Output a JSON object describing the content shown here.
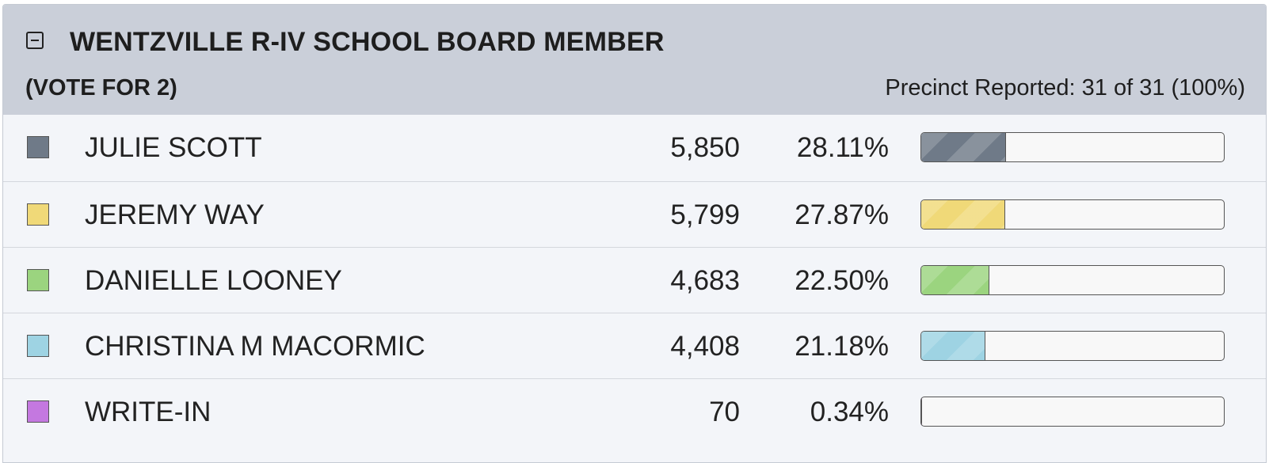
{
  "contest": {
    "title": "WENTZVILLE R-IV SCHOOL BOARD MEMBER",
    "vote_for": "(VOTE FOR 2)",
    "precinct_reported": "Precinct Reported: 31 of 31 (100%)",
    "collapse_icon": "collapse-minus-icon"
  },
  "candidates": [
    {
      "name": "JULIE SCOTT",
      "votes": "5,850",
      "percent": "28.11%",
      "share": 28.11,
      "color": "#6f7a88"
    },
    {
      "name": "JEREMY WAY",
      "votes": "5,799",
      "percent": "27.87%",
      "share": 27.87,
      "color": "#f0d978"
    },
    {
      "name": "DANIELLE LOONEY",
      "votes": "4,683",
      "percent": "22.50%",
      "share": 22.5,
      "color": "#9bd47f"
    },
    {
      "name": "CHRISTINA M MACORMIC",
      "votes": "4,408",
      "percent": "21.18%",
      "share": 21.18,
      "color": "#9ed3e3"
    },
    {
      "name": "WRITE-IN",
      "votes": "70",
      "percent": "0.34%",
      "share": 0.34,
      "color": "#c478e0"
    }
  ]
}
